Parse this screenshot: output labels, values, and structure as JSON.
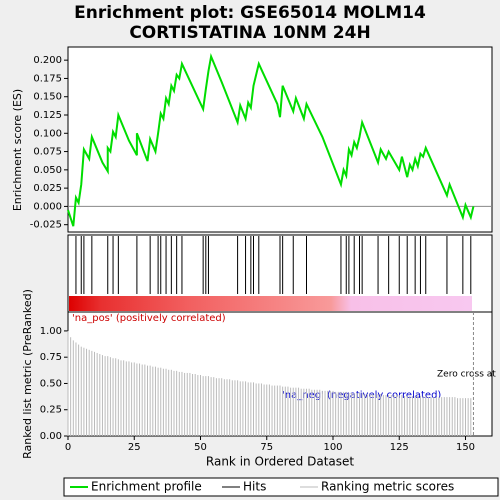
{
  "chart_data": {
    "type": "gsea",
    "title": "Enrichment plot: GSE65014 MOLM14",
    "subtitle": "CORTISTATINA 10NM 24H",
    "ylabel": "Enrichment score (ES)",
    "ylabel2": "Ranked list metric (PreRanked)",
    "xlabel": "Rank in Ordered Dataset",
    "xlim": [
      0,
      160
    ],
    "xticks": [
      0,
      25,
      50,
      75,
      100,
      125,
      150
    ],
    "ylim": [
      -0.035,
      0.218
    ],
    "yticks": [
      {
        "value": -0.025,
        "label": "-0.025"
      },
      {
        "value": 0,
        "label": "0.000"
      },
      {
        "value": 0.025,
        "label": "0.025"
      },
      {
        "value": 0.05,
        "label": "0.050"
      },
      {
        "value": 0.075,
        "label": "0.075"
      },
      {
        "value": 0.1,
        "label": "0.100"
      },
      {
        "value": 0.125,
        "label": "0.125"
      },
      {
        "value": 0.15,
        "label": "0.150"
      },
      {
        "value": 0.175,
        "label": "0.175"
      },
      {
        "value": 0.2,
        "label": "0.200"
      }
    ],
    "y2lim": [
      0,
      1.18
    ],
    "y2ticks": [
      {
        "value": 0,
        "label": "0.00"
      },
      {
        "value": 0.25,
        "label": "0.25"
      },
      {
        "value": 0.5,
        "label": "0.50"
      },
      {
        "value": 0.75,
        "label": "0.75"
      },
      {
        "value": 1,
        "label": "1.00"
      }
    ],
    "series": [
      {
        "name": "Enrichment profile",
        "color": "#00dd00",
        "x": [
          0,
          2,
          3,
          4,
          5,
          6,
          8,
          9,
          13,
          15,
          15,
          16,
          17,
          18,
          19,
          23,
          26,
          26,
          30,
          31,
          33,
          34,
          35,
          36,
          37,
          38,
          39,
          40,
          41,
          42,
          43,
          51,
          52,
          53,
          54,
          58,
          64,
          65,
          67,
          68,
          69,
          70,
          72,
          79,
          80,
          81,
          85,
          86,
          89,
          90,
          96,
          103,
          104,
          105,
          106,
          107,
          108,
          109,
          110,
          111,
          117,
          118,
          120,
          121,
          125,
          126,
          128,
          129,
          130,
          131,
          132,
          133,
          134,
          135,
          143,
          144,
          149,
          150,
          152,
          153
        ],
        "values": [
          -0.005,
          -0.027,
          0.012,
          0.005,
          0.03,
          0.078,
          0.065,
          0.095,
          0.06,
          0.048,
          0.08,
          0.075,
          0.102,
          0.095,
          0.125,
          0.09,
          0.07,
          0.1,
          0.062,
          0.092,
          0.075,
          0.1,
          0.127,
          0.12,
          0.148,
          0.14,
          0.165,
          0.158,
          0.18,
          0.175,
          0.195,
          0.133,
          0.16,
          0.185,
          0.205,
          0.17,
          0.115,
          0.138,
          0.12,
          0.142,
          0.135,
          0.165,
          0.195,
          0.14,
          0.122,
          0.165,
          0.13,
          0.148,
          0.12,
          0.14,
          0.095,
          0.03,
          0.05,
          0.042,
          0.078,
          0.07,
          0.088,
          0.08,
          0.095,
          0.115,
          0.06,
          0.078,
          0.065,
          0.075,
          0.05,
          0.068,
          0.04,
          0.057,
          0.05,
          0.065,
          0.055,
          0.072,
          0.068,
          0.08,
          0.015,
          0.03,
          -0.015,
          0.002,
          -0.015,
          0
        ]
      },
      {
        "name": "Hits",
        "color": "#000000",
        "x": [
          3,
          5,
          6,
          9,
          15,
          17,
          19,
          26,
          31,
          34,
          35,
          37,
          39,
          41,
          43,
          51,
          52,
          53,
          64,
          67,
          69,
          70,
          72,
          80,
          81,
          85,
          90,
          103,
          105,
          106,
          108,
          110,
          111,
          117,
          121,
          125,
          128,
          131,
          133,
          135,
          143,
          149,
          152
        ]
      },
      {
        "name": "Ranking metric scores",
        "color": "#bbbbbb",
        "axis": "y2",
        "values": [
          1.0,
          0.94,
          0.91,
          0.89,
          0.87,
          0.85,
          0.84,
          0.83,
          0.82,
          0.81,
          0.8,
          0.79,
          0.78,
          0.77,
          0.76,
          0.76,
          0.75,
          0.74,
          0.74,
          0.73,
          0.72,
          0.72,
          0.71,
          0.71,
          0.7,
          0.7,
          0.69,
          0.69,
          0.68,
          0.68,
          0.67,
          0.67,
          0.66,
          0.66,
          0.65,
          0.65,
          0.64,
          0.64,
          0.63,
          0.63,
          0.62,
          0.62,
          0.61,
          0.61,
          0.6,
          0.6,
          0.6,
          0.59,
          0.59,
          0.58,
          0.58,
          0.57,
          0.57,
          0.57,
          0.56,
          0.56,
          0.55,
          0.55,
          0.55,
          0.54,
          0.54,
          0.54,
          0.53,
          0.53,
          0.53,
          0.52,
          0.52,
          0.52,
          0.51,
          0.51,
          0.51,
          0.5,
          0.5,
          0.5,
          0.49,
          0.49,
          0.49,
          0.48,
          0.48,
          0.48,
          0.48,
          0.47,
          0.47,
          0.47,
          0.46,
          0.46,
          0.46,
          0.46,
          0.45,
          0.45,
          0.45,
          0.45,
          0.44,
          0.44,
          0.44,
          0.44,
          0.43,
          0.43,
          0.43,
          0.43,
          0.43,
          0.42,
          0.42,
          0.42,
          0.42,
          0.42,
          0.41,
          0.41,
          0.41,
          0.41,
          0.41,
          0.41,
          0.4,
          0.4,
          0.4,
          0.4,
          0.4,
          0.4,
          0.4,
          0.39,
          0.39,
          0.39,
          0.39,
          0.39,
          0.39,
          0.39,
          0.39,
          0.38,
          0.38,
          0.38,
          0.38,
          0.38,
          0.38,
          0.38,
          0.38,
          0.38,
          0.37,
          0.37,
          0.37,
          0.37,
          0.37,
          0.37,
          0.37,
          0.37,
          0.37,
          0.37,
          0.37,
          0.36,
          0.36,
          0.36,
          0.36,
          0.36,
          0.36
        ]
      }
    ],
    "zero_cross": 153,
    "annotations": [
      "'na_pos' (positively correlated)",
      "'na_neg' (negatively correlated)",
      "Zero cross at"
    ]
  }
}
